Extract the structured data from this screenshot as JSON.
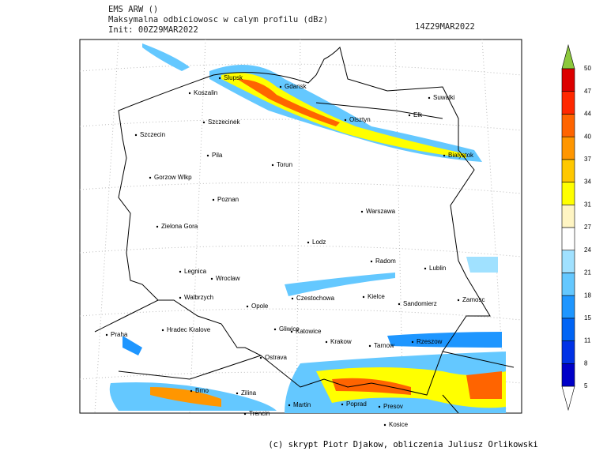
{
  "header": {
    "model": "EMS ARW ()",
    "field": "Maksymalna odbiciowosc w calym profilu (dBz)",
    "init": "Init: 00Z29MAR2022",
    "valid": "14Z29MAR2022"
  },
  "cities": [
    "Slupsk",
    "Koszalin",
    "Gdansk",
    "Suwalki",
    "Szczecinek",
    "Elk",
    "Olsztyn",
    "Szczecin",
    "Bialystok",
    "Pila",
    "Torun",
    "Gorzow Wlkp",
    "Poznan",
    "Warszawa",
    "Zielona Gora",
    "Lodz",
    "Radom",
    "Lublin",
    "Legnica",
    "Wroclaw",
    "Walbrzych",
    "Opole",
    "Czestochowa",
    "Kielce",
    "Sandomierz",
    "Zamosc",
    "Hradec Kralove",
    "Gliwice",
    "Katowice",
    "Praha",
    "Krakow",
    "Tarnow",
    "Rzeszow",
    "Ostrava",
    "Brno",
    "Zilina",
    "Martin",
    "Poprad",
    "Presov",
    "Trencin",
    "Kosice"
  ],
  "colorbar": {
    "labels": [
      5,
      8,
      11,
      15,
      18,
      21,
      24,
      27,
      31,
      34,
      37,
      40,
      44,
      47,
      50
    ],
    "colors": [
      "#0000c8",
      "#0032e6",
      "#0064f5",
      "#1e96ff",
      "#64c8ff",
      "#a0e1ff",
      "#ffffff",
      "#fff5c3",
      "#ffff00",
      "#ffc800",
      "#ff9600",
      "#ff6400",
      "#ff2800",
      "#dc0000"
    ],
    "above_color": "#8cc83c",
    "below_color": "#ffffff"
  },
  "footer": "(c) skrypt Piotr Djakow, obliczenia Juliusz Orlikowski"
}
